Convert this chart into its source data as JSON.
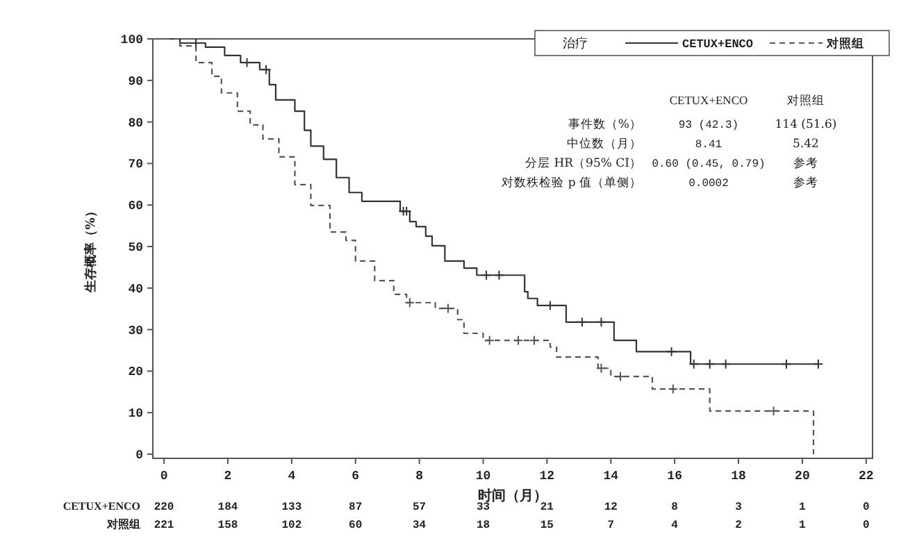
{
  "chart_data": {
    "type": "step",
    "xlabel": "时间（月）",
    "ylabel": "生存概率（%）",
    "legend_title": "治疗",
    "legend": "top right",
    "xlim": [
      -0.35,
      22.2
    ],
    "ylim": [
      -1,
      100
    ],
    "xticks": [
      0,
      2,
      4,
      6,
      8,
      10,
      12,
      14,
      16,
      18,
      20,
      22
    ],
    "yticks": [
      0,
      10,
      20,
      30,
      40,
      50,
      60,
      70,
      80,
      90,
      100
    ],
    "series": [
      {
        "name": "CETUX+ENCO",
        "color": "#333333",
        "line_style": "solid",
        "x": [
          0,
          0.5,
          1.3,
          1.9,
          2.4,
          3.0,
          3.3,
          3.5,
          4.1,
          4.4,
          4.6,
          5.0,
          5.4,
          5.8,
          6.2,
          7.4,
          7.7,
          7.9,
          8.2,
          8.4,
          8.8,
          9.4,
          9.8,
          11.3,
          11.4,
          11.7,
          12.6,
          14.1,
          14.8,
          16.5,
          20.5
        ],
        "values": [
          100,
          99,
          98,
          96,
          94.3,
          92.6,
          89,
          85.3,
          82.6,
          78,
          74.2,
          71,
          66.6,
          63,
          60.9,
          58.5,
          56,
          54.8,
          52.5,
          50.2,
          46.5,
          44.8,
          43.1,
          39.1,
          37.5,
          35.8,
          31.8,
          27.4,
          24.7,
          21.7,
          21.7
        ]
      },
      {
        "name": "对照组",
        "color": "#555555",
        "line_style": "dashed",
        "x": [
          0,
          0.5,
          1.0,
          1.5,
          1.8,
          2.3,
          2.7,
          3.1,
          3.6,
          4.1,
          4.6,
          5.2,
          5.7,
          6.0,
          6.6,
          7.2,
          7.6,
          8.5,
          9.2,
          9.4,
          10.0,
          12.1,
          12.3,
          13.6,
          14.0,
          15.3,
          17.1,
          20.35,
          20.35
        ],
        "values": [
          100,
          98.3,
          94.3,
          91,
          87,
          82.6,
          79.3,
          75.9,
          71.6,
          64.9,
          59.9,
          53.5,
          51.5,
          46.5,
          41.8,
          38.5,
          36.5,
          35.1,
          32.4,
          29.1,
          27.4,
          25.8,
          23.4,
          20.7,
          18.7,
          15.7,
          10.4,
          10.4,
          0
        ]
      },
      {
        "type": "scatter",
        "marker": "cross",
        "color": "#333333",
        "x": [
          1.0,
          2.6,
          3.2,
          7.5,
          7.6,
          10.1,
          10.5,
          12.1,
          13.1,
          13.7,
          15.9,
          16.6,
          17.1,
          17.6,
          19.5,
          20.5
        ],
        "values": [
          99,
          94.3,
          92.6,
          58.5,
          58.5,
          43.1,
          43.1,
          35.8,
          31.8,
          31.8,
          24.7,
          21.7,
          21.7,
          21.7,
          21.7,
          21.7
        ]
      },
      {
        "type": "scatter",
        "marker": "cross",
        "color": "#555555",
        "x": [
          7.7,
          8.9,
          10.2,
          11.1,
          11.6,
          13.7,
          14.3,
          15.95,
          19.1
        ],
        "values": [
          36.5,
          35.1,
          27.4,
          27.4,
          27.4,
          20.7,
          18.7,
          15.7,
          10.4
        ]
      }
    ],
    "annotations": [
      "CETUX+ENCO",
      "对照组",
      "事件数（%）",
      "93 (42.3)",
      "114 (51.6)",
      "中位数（月）",
      "8.41",
      "5.42",
      "分层 HR（95% CI）",
      "0.60 (0.45, 0.79)",
      "参考",
      "对数秩检验 p 值（单侧）",
      "0.0002",
      "参考",
      "CETUX+ENCO",
      "220",
      "184",
      "133",
      "87",
      "57",
      "33",
      "21",
      "12",
      "8",
      "3",
      "1",
      "0",
      "对照组",
      "221",
      "158",
      "102",
      "60",
      "34",
      "18",
      "15",
      "7",
      "4",
      "2",
      "1",
      "0"
    ]
  }
}
